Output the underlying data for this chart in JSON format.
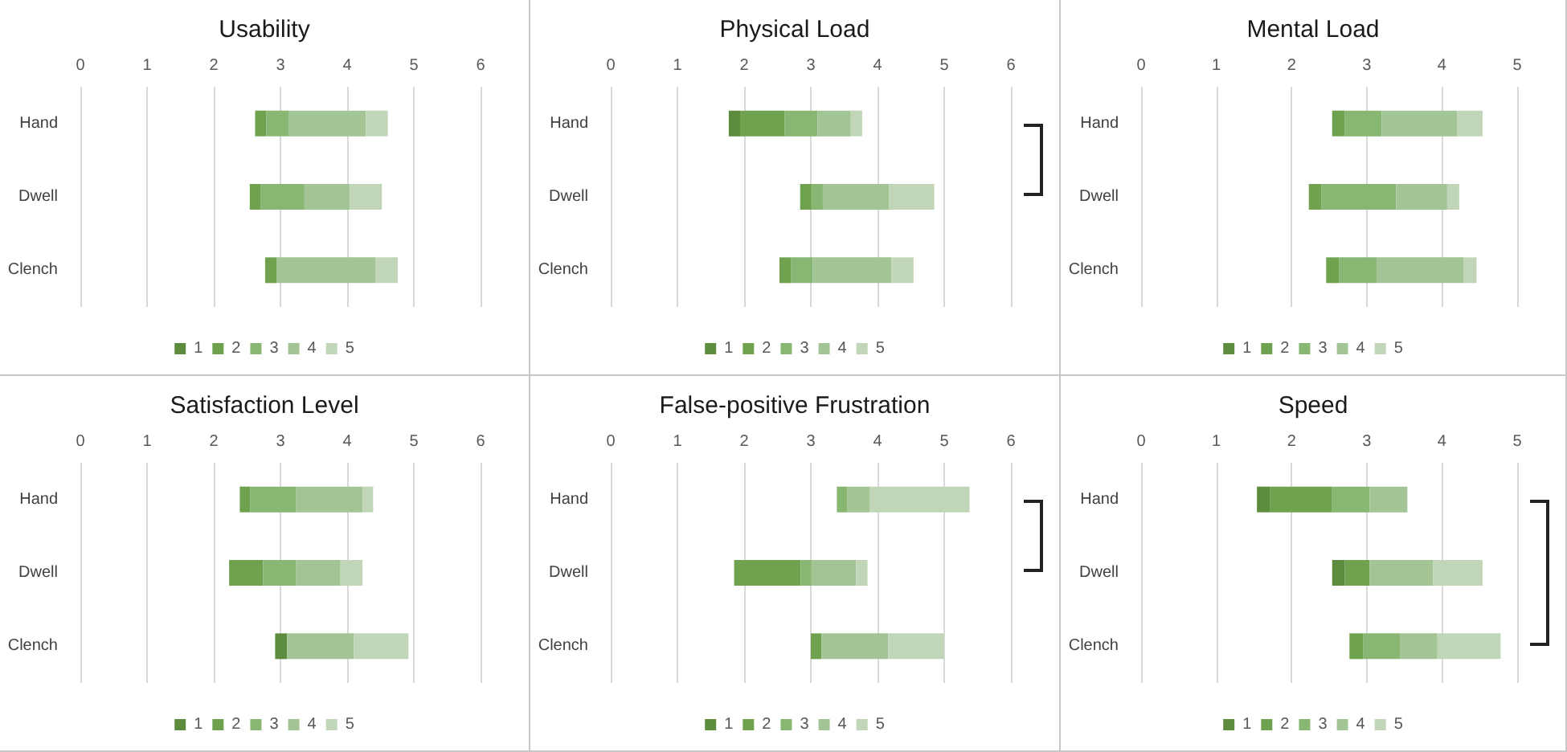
{
  "chart_data": [
    {
      "type": "bar",
      "orientation": "horizontal",
      "title": "Usability",
      "categories": [
        "Hand",
        "Dwell",
        "Clench"
      ],
      "series": [
        {
          "name": "1",
          "color": "#5e8c3f",
          "base": [
            null,
            null,
            null
          ],
          "values": [
            null,
            null,
            null
          ]
        },
        {
          "name": "2",
          "color": "#6fa24f",
          "base": [
            2.62,
            2.54,
            2.77
          ],
          "values": [
            0.17,
            0.16,
            0.17
          ]
        },
        {
          "name": "3",
          "color": "#88b673",
          "base": [
            2.79,
            2.7,
            null
          ],
          "values": [
            0.33,
            0.66,
            null
          ]
        },
        {
          "name": "4",
          "color": "#a3c494",
          "base": [
            3.12,
            3.36,
            2.94
          ],
          "values": [
            1.16,
            0.68,
            1.49
          ]
        },
        {
          "name": "5",
          "color": "#c1d6b8",
          "base": [
            4.28,
            4.04,
            4.43
          ],
          "values": [
            0.33,
            0.48,
            0.33
          ]
        }
      ],
      "xlim": [
        0,
        6
      ],
      "xticks": [
        0,
        1,
        2,
        3,
        4,
        5,
        6
      ],
      "grid": "x",
      "legend": "bottom"
    },
    {
      "type": "bar",
      "orientation": "horizontal",
      "title": "Physical Load",
      "categories": [
        "Hand",
        "Dwell",
        "Clench"
      ],
      "series": [
        {
          "name": "1",
          "color": "#5e8c3f",
          "base": [
            1.77,
            null,
            null
          ],
          "values": [
            0.17,
            null,
            null
          ]
        },
        {
          "name": "2",
          "color": "#6fa24f",
          "base": [
            1.94,
            2.84,
            2.53
          ],
          "values": [
            0.67,
            0.17,
            0.17
          ]
        },
        {
          "name": "3",
          "color": "#88b673",
          "base": [
            2.61,
            3.01,
            2.7
          ],
          "values": [
            0.49,
            0.17,
            0.33
          ]
        },
        {
          "name": "4",
          "color": "#a3c494",
          "base": [
            3.1,
            3.18,
            3.03
          ],
          "values": [
            0.5,
            0.99,
            1.18
          ]
        },
        {
          "name": "5",
          "color": "#c1d6b8",
          "base": [
            3.6,
            4.17,
            4.21
          ],
          "values": [
            0.17,
            0.68,
            0.33
          ]
        }
      ],
      "xlim": [
        0,
        6
      ],
      "xticks": [
        0,
        1,
        2,
        3,
        4,
        5,
        6
      ],
      "grid": "x",
      "legend": "bottom"
    },
    {
      "type": "bar",
      "orientation": "horizontal",
      "title": "Mental Load",
      "categories": [
        "Hand",
        "Dwell",
        "Clench"
      ],
      "series": [
        {
          "name": "1",
          "color": "#5e8c3f",
          "base": [
            null,
            null,
            null
          ],
          "values": [
            null,
            null,
            null
          ]
        },
        {
          "name": "2",
          "color": "#6fa24f",
          "base": [
            2.54,
            2.23,
            2.46
          ],
          "values": [
            0.17,
            0.17,
            0.17
          ]
        },
        {
          "name": "3",
          "color": "#88b673",
          "base": [
            2.71,
            2.4,
            2.63
          ],
          "values": [
            0.49,
            0.99,
            0.5
          ]
        },
        {
          "name": "4",
          "color": "#a3c494",
          "base": [
            3.2,
            3.39,
            3.13
          ],
          "values": [
            1.0,
            0.68,
            1.16
          ]
        },
        {
          "name": "5",
          "color": "#c1d6b8",
          "base": [
            4.2,
            4.07,
            4.29
          ],
          "values": [
            0.34,
            0.16,
            0.17
          ]
        }
      ],
      "xlim": [
        0,
        5
      ],
      "xticks": [
        0,
        1,
        2,
        3,
        4,
        5
      ],
      "grid": "x",
      "legend": "bottom"
    },
    {
      "type": "bar",
      "orientation": "horizontal",
      "title": "Satisfaction Level",
      "categories": [
        "Hand",
        "Dwell",
        "Clench"
      ],
      "series": [
        {
          "name": "1",
          "color": "#5e8c3f",
          "base": [
            null,
            null,
            2.92
          ],
          "values": [
            null,
            null,
            0.18
          ]
        },
        {
          "name": "2",
          "color": "#6fa24f",
          "base": [
            2.39,
            2.23,
            null
          ],
          "values": [
            0.16,
            0.51,
            null
          ]
        },
        {
          "name": "3",
          "color": "#88b673",
          "base": [
            2.55,
            2.74,
            null
          ],
          "values": [
            0.68,
            0.49,
            null
          ]
        },
        {
          "name": "4",
          "color": "#a3c494",
          "base": [
            3.23,
            3.23,
            3.1
          ],
          "values": [
            1.0,
            0.67,
            1.0
          ]
        },
        {
          "name": "5",
          "color": "#c1d6b8",
          "base": [
            4.23,
            3.9,
            4.1
          ],
          "values": [
            0.16,
            0.33,
            0.82
          ]
        }
      ],
      "xlim": [
        0,
        6
      ],
      "xticks": [
        0,
        1,
        2,
        3,
        4,
        5,
        6
      ],
      "grid": "x",
      "legend": "bottom"
    },
    {
      "type": "bar",
      "orientation": "horizontal",
      "title": "False-positive Frustration",
      "categories": [
        "Hand",
        "Dwell",
        "Clench"
      ],
      "series": [
        {
          "name": "1",
          "color": "#5e8c3f",
          "base": [
            null,
            null,
            null
          ],
          "values": [
            null,
            null,
            null
          ]
        },
        {
          "name": "2",
          "color": "#6fa24f",
          "base": [
            null,
            1.85,
            3.0
          ],
          "values": [
            null,
            1.0,
            0.16
          ]
        },
        {
          "name": "3",
          "color": "#88b673",
          "base": [
            3.39,
            2.85,
            null
          ],
          "values": [
            0.16,
            0.16,
            null
          ]
        },
        {
          "name": "4",
          "color": "#a3c494",
          "base": [
            3.55,
            3.01,
            3.16
          ],
          "values": [
            0.33,
            0.67,
            1.0
          ]
        },
        {
          "name": "5",
          "color": "#c1d6b8",
          "base": [
            3.88,
            3.68,
            4.16
          ],
          "values": [
            1.5,
            0.17,
            0.84
          ]
        }
      ],
      "xlim": [
        0,
        6
      ],
      "xticks": [
        0,
        1,
        2,
        3,
        4,
        5,
        6
      ],
      "grid": "x",
      "legend": "bottom"
    },
    {
      "type": "bar",
      "orientation": "horizontal",
      "title": "Speed",
      "categories": [
        "Hand",
        "Dwell",
        "Clench"
      ],
      "series": [
        {
          "name": "1",
          "color": "#5e8c3f",
          "base": [
            1.54,
            2.54,
            null
          ],
          "values": [
            0.17,
            0.17,
            null
          ]
        },
        {
          "name": "2",
          "color": "#6fa24f",
          "base": [
            1.71,
            2.71,
            2.77
          ],
          "values": [
            0.83,
            0.33,
            0.18
          ]
        },
        {
          "name": "3",
          "color": "#88b673",
          "base": [
            2.54,
            null,
            2.95
          ],
          "values": [
            0.5,
            null,
            0.49
          ]
        },
        {
          "name": "4",
          "color": "#a3c494",
          "base": [
            3.04,
            3.04,
            3.44
          ],
          "values": [
            0.5,
            0.84,
            0.5
          ]
        },
        {
          "name": "5",
          "color": "#c1d6b8",
          "base": [
            null,
            3.88,
            3.94
          ],
          "values": [
            null,
            0.66,
            0.84
          ]
        }
      ],
      "xlim": [
        0,
        5
      ],
      "xticks": [
        0,
        1,
        2,
        3,
        4,
        5
      ],
      "grid": "x",
      "legend": "bottom"
    }
  ]
}
